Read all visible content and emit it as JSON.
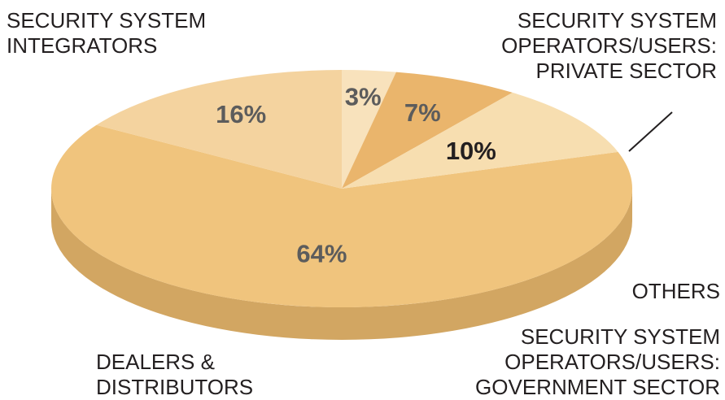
{
  "chart_data": {
    "type": "pie",
    "style": "3d",
    "slices": [
      {
        "name": "SECURITY SYSTEM INTEGRATORS",
        "label_lines": [
          "SECURITY SYSTEM",
          "INTEGRATORS"
        ],
        "value": 64,
        "value_label": "64%",
        "color": "#f0c47d",
        "side_color": "#d2a662",
        "label_color": "#5c5c5c"
      },
      {
        "name": "SECURITY SYSTEM OPERATORS/USERS: PRIVATE SECTOR",
        "label_lines": [
          "SECURITY SYSTEM",
          "OPERATORS/USERS:",
          "PRIVATE SECTOR"
        ],
        "value": 16,
        "value_label": "16%",
        "color": "#f4d39f",
        "side_color": "#d8b886",
        "label_color": "#5c5c5c"
      },
      {
        "name": "OTHERS",
        "label_lines": [
          "OTHERS"
        ],
        "value": 3,
        "value_label": "3%",
        "color": "#f8e2bc",
        "side_color": "#e0c9a0",
        "label_color": "#5c5c5c"
      },
      {
        "name": "SECURITY SYSTEM OPERATORS/USERS: GOVERNMENT SECTOR",
        "label_lines": [
          "SECURITY SYSTEM",
          "OPERATORS/USERS:",
          "GOVERNMENT SECTOR"
        ],
        "value": 7,
        "value_label": "7%",
        "color": "#eab56c",
        "side_color": "#cc9a55",
        "label_color": "#5c5c5c"
      },
      {
        "name": "DEALERS & DISTRIBUTORS",
        "label_lines": [
          "DEALERS &",
          "DISTRIBUTORS"
        ],
        "value": 10,
        "value_label": "10%",
        "color": "#f7deb0",
        "side_color": "#dcc292",
        "label_color": "#231f20"
      }
    ],
    "start_angle_deg": -18,
    "direction": "clockwise",
    "legend": "none"
  }
}
